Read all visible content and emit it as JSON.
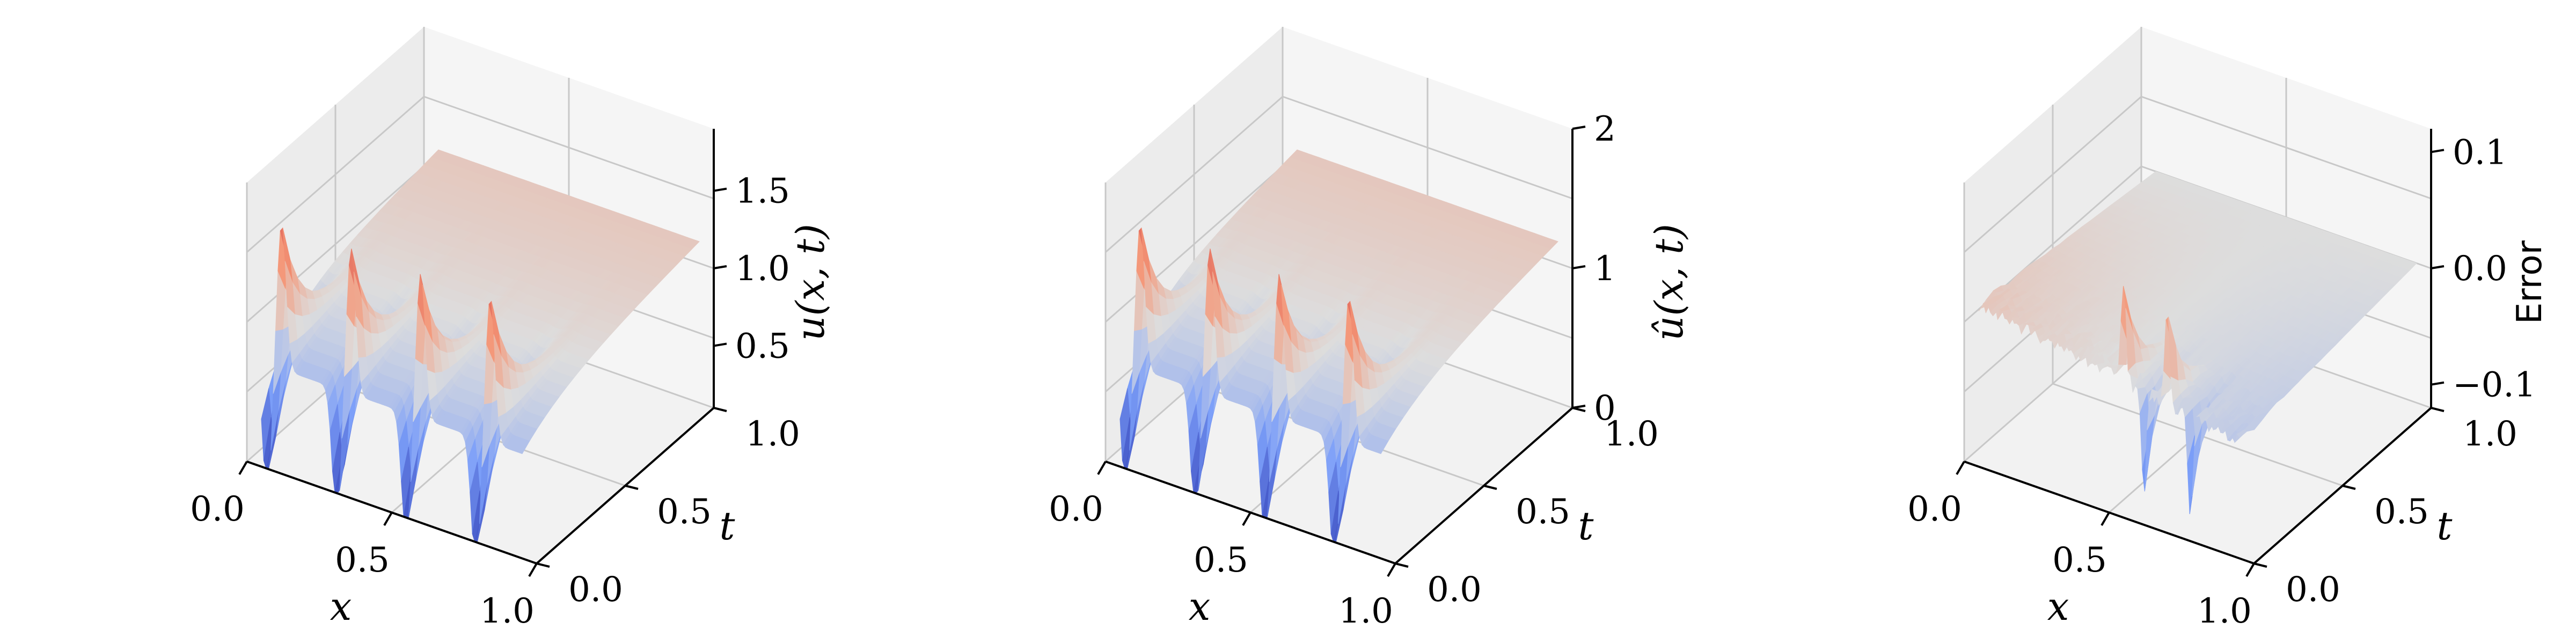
{
  "chart_data": [
    {
      "type": "surface",
      "xlabel": "x",
      "ylabel": "t",
      "zlabel": "u(x, t)",
      "xticks": [
        "0.0",
        "0.5",
        "1.0"
      ],
      "yticks": [
        "0.0",
        "0.5",
        "1.0"
      ],
      "zticks": [
        "0.5",
        "1.0",
        "1.5"
      ],
      "xlim": [
        0,
        1
      ],
      "ylim": [
        0,
        1
      ],
      "zlim": [
        0.1,
        1.9
      ],
      "colormap": "coolwarm",
      "grid": true,
      "peaks_x": [
        0.12,
        0.36,
        0.6,
        0.84
      ],
      "peak_max": 1.9,
      "trough_min": 0.1,
      "plateau_value": 1.0
    },
    {
      "type": "surface",
      "xlabel": "x",
      "ylabel": "t",
      "zlabel": "û(x, t)",
      "xticks": [
        "0.0",
        "0.5",
        "1.0"
      ],
      "yticks": [
        "0.0",
        "0.5",
        "1.0"
      ],
      "zticks": [
        "0",
        "1",
        "2"
      ],
      "xlim": [
        0,
        1
      ],
      "ylim": [
        0,
        1
      ],
      "zlim": [
        0,
        2
      ],
      "colormap": "coolwarm",
      "grid": true,
      "peaks_x": [
        0.12,
        0.36,
        0.6,
        0.84
      ],
      "peak_max": 1.9,
      "trough_min": 0.1,
      "plateau_value": 1.0
    },
    {
      "type": "surface",
      "xlabel": "x",
      "ylabel": "t",
      "zlabel": "Error",
      "xticks": [
        "0.0",
        "0.5",
        "1.0"
      ],
      "yticks": [
        "0.0",
        "0.5",
        "1.0"
      ],
      "zticks": [
        "−0.1",
        "0.0",
        "0.1"
      ],
      "xlim": [
        0,
        1
      ],
      "ylim": [
        0,
        1
      ],
      "zlim": [
        -0.12,
        0.12
      ],
      "colormap": "coolwarm",
      "grid": true,
      "error_spike_max": 0.12,
      "error_spike_min": -0.12
    }
  ]
}
